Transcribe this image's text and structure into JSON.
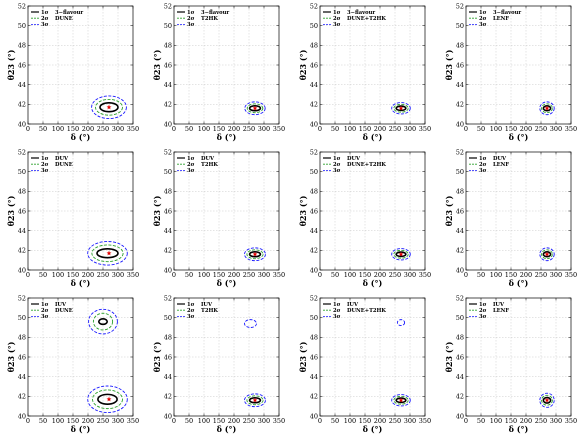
{
  "chart_data": [
    {
      "type": "contour",
      "panel": "r1c1",
      "xlabel": "δ (°)",
      "ylabel": "θ23 (°)",
      "xlim": [
        0,
        350
      ],
      "ylim": [
        40,
        52
      ],
      "legend": {
        "sigma_labels": [
          "1σ",
          "2σ",
          "3σ"
        ],
        "names": [
          "3−flavour",
          "DUNE"
        ],
        "placement": "top-left"
      },
      "best_fit": {
        "x": 270,
        "y": 41.7
      },
      "contours": [
        {
          "level": "1σ",
          "cx": 270,
          "cy": 41.7,
          "rx": 30,
          "ry": 0.45
        },
        {
          "level": "2σ",
          "cx": 270,
          "cy": 41.7,
          "rx": 45,
          "ry": 0.8
        },
        {
          "level": "3σ",
          "cx": 270,
          "cy": 41.7,
          "rx": 58,
          "ry": 1.15
        }
      ]
    },
    {
      "type": "contour",
      "panel": "r1c2",
      "xlabel": "δ (°)",
      "ylabel": "θ23 (°)",
      "xlim": [
        0,
        350
      ],
      "ylim": [
        40,
        52
      ],
      "legend": {
        "sigma_labels": [
          "1σ",
          "2σ",
          "3σ"
        ],
        "names": [
          "3−flavour",
          "T2HK"
        ],
        "placement": "top-left"
      },
      "best_fit": {
        "x": 270,
        "y": 41.6
      },
      "contours": [
        {
          "level": "1σ",
          "cx": 270,
          "cy": 41.6,
          "rx": 18,
          "ry": 0.25
        },
        {
          "level": "2σ",
          "cx": 270,
          "cy": 41.6,
          "rx": 26,
          "ry": 0.45
        },
        {
          "level": "3σ",
          "cx": 270,
          "cy": 41.6,
          "rx": 34,
          "ry": 0.65
        }
      ]
    },
    {
      "type": "contour",
      "panel": "r1c3",
      "xlabel": "δ (°)",
      "ylabel": "θ23 (°)",
      "xlim": [
        0,
        350
      ],
      "ylim": [
        40,
        52
      ],
      "legend": {
        "sigma_labels": [
          "1σ",
          "2σ",
          "3σ"
        ],
        "names": [
          "3−flavour",
          "DUNE+T2HK"
        ],
        "placement": "top-left"
      },
      "best_fit": {
        "x": 270,
        "y": 41.6
      },
      "contours": [
        {
          "level": "1σ",
          "cx": 270,
          "cy": 41.6,
          "rx": 16,
          "ry": 0.22
        },
        {
          "level": "2σ",
          "cx": 270,
          "cy": 41.6,
          "rx": 24,
          "ry": 0.4
        },
        {
          "level": "3σ",
          "cx": 270,
          "cy": 41.6,
          "rx": 31,
          "ry": 0.58
        }
      ]
    },
    {
      "type": "contour",
      "panel": "r1c4",
      "xlabel": "δ (°)",
      "ylabel": "θ23 (°)",
      "xlim": [
        0,
        350
      ],
      "ylim": [
        40,
        52
      ],
      "legend": {
        "sigma_labels": [
          "1σ",
          "2σ",
          "3σ"
        ],
        "names": [
          "3−flavour",
          "LENF"
        ],
        "placement": "top-left"
      },
      "best_fit": {
        "x": 270,
        "y": 41.6
      },
      "contours": [
        {
          "level": "1σ",
          "cx": 270,
          "cy": 41.6,
          "rx": 12,
          "ry": 0.25
        },
        {
          "level": "2σ",
          "cx": 270,
          "cy": 41.6,
          "rx": 18,
          "ry": 0.45
        },
        {
          "level": "3σ",
          "cx": 270,
          "cy": 41.6,
          "rx": 24,
          "ry": 0.65
        }
      ]
    },
    {
      "type": "contour",
      "panel": "r2c1",
      "xlabel": "δ (°)",
      "ylabel": "θ23 (°)",
      "xlim": [
        0,
        350
      ],
      "ylim": [
        40,
        52
      ],
      "legend": {
        "sigma_labels": [
          "1σ",
          "2σ",
          "3σ"
        ],
        "names": [
          "DUV",
          "DUNE"
        ],
        "placement": "top-left"
      },
      "best_fit": {
        "x": 270,
        "y": 41.7
      },
      "contours": [
        {
          "level": "1σ",
          "cx": 265,
          "cy": 41.7,
          "rx": 35,
          "ry": 0.45
        },
        {
          "level": "2σ",
          "cx": 265,
          "cy": 41.7,
          "rx": 52,
          "ry": 0.85
        },
        {
          "level": "3σ",
          "cx": 265,
          "cy": 41.7,
          "rx": 66,
          "ry": 1.2
        }
      ]
    },
    {
      "type": "contour",
      "panel": "r2c2",
      "xlabel": "δ (°)",
      "ylabel": "θ23 (°)",
      "xlim": [
        0,
        350
      ],
      "ylim": [
        40,
        52
      ],
      "legend": {
        "sigma_labels": [
          "1σ",
          "2σ",
          "3σ"
        ],
        "names": [
          "DUV",
          "T2HK"
        ],
        "placement": "top-left"
      },
      "best_fit": {
        "x": 270,
        "y": 41.6
      },
      "contours": [
        {
          "level": "1σ",
          "cx": 270,
          "cy": 41.6,
          "rx": 18,
          "ry": 0.25
        },
        {
          "level": "2σ",
          "cx": 270,
          "cy": 41.6,
          "rx": 27,
          "ry": 0.45
        },
        {
          "level": "3σ",
          "cx": 270,
          "cy": 41.6,
          "rx": 35,
          "ry": 0.65
        }
      ]
    },
    {
      "type": "contour",
      "panel": "r2c3",
      "xlabel": "δ (°)",
      "ylabel": "θ23 (°)",
      "xlim": [
        0,
        350
      ],
      "ylim": [
        40,
        52
      ],
      "legend": {
        "sigma_labels": [
          "1σ",
          "2σ",
          "3σ"
        ],
        "names": [
          "DUV",
          "DUNE+T2HK"
        ],
        "placement": "top-left"
      },
      "best_fit": {
        "x": 270,
        "y": 41.6
      },
      "contours": [
        {
          "level": "1σ",
          "cx": 270,
          "cy": 41.6,
          "rx": 16,
          "ry": 0.22
        },
        {
          "level": "2σ",
          "cx": 270,
          "cy": 41.6,
          "rx": 24,
          "ry": 0.4
        },
        {
          "level": "3σ",
          "cx": 270,
          "cy": 41.6,
          "rx": 31,
          "ry": 0.58
        }
      ]
    },
    {
      "type": "contour",
      "panel": "r2c4",
      "xlabel": "δ (°)",
      "ylabel": "θ23 (°)",
      "xlim": [
        0,
        350
      ],
      "ylim": [
        40,
        52
      ],
      "legend": {
        "sigma_labels": [
          "1σ",
          "2σ",
          "3σ"
        ],
        "names": [
          "DUV",
          "LENF"
        ],
        "placement": "top-left"
      },
      "best_fit": {
        "x": 270,
        "y": 41.6
      },
      "contours": [
        {
          "level": "1σ",
          "cx": 270,
          "cy": 41.6,
          "rx": 12,
          "ry": 0.25
        },
        {
          "level": "2σ",
          "cx": 270,
          "cy": 41.6,
          "rx": 18,
          "ry": 0.45
        },
        {
          "level": "3σ",
          "cx": 270,
          "cy": 41.6,
          "rx": 24,
          "ry": 0.65
        }
      ]
    },
    {
      "type": "contour",
      "panel": "r3c1",
      "xlabel": "δ (°)",
      "ylabel": "θ23 (°)",
      "xlim": [
        0,
        350
      ],
      "ylim": [
        40,
        52
      ],
      "legend": {
        "sigma_labels": [
          "1σ",
          "2σ",
          "3σ"
        ],
        "names": [
          "IUV",
          "DUNE"
        ],
        "placement": "top-left"
      },
      "best_fit": {
        "x": 270,
        "y": 41.7
      },
      "contours": [
        {
          "level": "1σ",
          "cx": 265,
          "cy": 41.7,
          "rx": 32,
          "ry": 0.5
        },
        {
          "level": "2σ",
          "cx": 265,
          "cy": 41.7,
          "rx": 50,
          "ry": 0.95
        },
        {
          "level": "3σ",
          "cx": 265,
          "cy": 41.7,
          "rx": 66,
          "ry": 1.35
        },
        {
          "level": "1σ",
          "cx": 250,
          "cy": 49.6,
          "rx": 14,
          "ry": 0.28
        },
        {
          "level": "2σ",
          "cx": 250,
          "cy": 49.6,
          "rx": 32,
          "ry": 0.85
        },
        {
          "level": "3σ",
          "cx": 250,
          "cy": 49.6,
          "rx": 48,
          "ry": 1.25
        }
      ]
    },
    {
      "type": "contour",
      "panel": "r3c2",
      "xlabel": "δ (°)",
      "ylabel": "θ23 (°)",
      "xlim": [
        0,
        350
      ],
      "ylim": [
        40,
        52
      ],
      "legend": {
        "sigma_labels": [
          "1σ",
          "2σ",
          "3σ"
        ],
        "names": [
          "IUV",
          "T2HK"
        ],
        "placement": "top-left"
      },
      "best_fit": {
        "x": 270,
        "y": 41.6
      },
      "contours": [
        {
          "level": "1σ",
          "cx": 270,
          "cy": 41.6,
          "rx": 18,
          "ry": 0.25
        },
        {
          "level": "2σ",
          "cx": 270,
          "cy": 41.6,
          "rx": 27,
          "ry": 0.45
        },
        {
          "level": "3σ",
          "cx": 270,
          "cy": 41.6,
          "rx": 35,
          "ry": 0.65
        },
        {
          "level": "3σ",
          "cx": 255,
          "cy": 49.4,
          "rx": 20,
          "ry": 0.4
        }
      ]
    },
    {
      "type": "contour",
      "panel": "r3c3",
      "xlabel": "δ (°)",
      "ylabel": "θ23 (°)",
      "xlim": [
        0,
        350
      ],
      "ylim": [
        40,
        52
      ],
      "legend": {
        "sigma_labels": [
          "1σ",
          "2σ",
          "3σ"
        ],
        "names": [
          "IUV",
          "DUNE+T2HK"
        ],
        "placement": "top-left"
      },
      "best_fit": {
        "x": 270,
        "y": 41.6
      },
      "contours": [
        {
          "level": "1σ",
          "cx": 270,
          "cy": 41.6,
          "rx": 16,
          "ry": 0.22
        },
        {
          "level": "2σ",
          "cx": 270,
          "cy": 41.6,
          "rx": 24,
          "ry": 0.4
        },
        {
          "level": "3σ",
          "cx": 270,
          "cy": 41.6,
          "rx": 31,
          "ry": 0.58
        },
        {
          "level": "3σ",
          "cx": 270,
          "cy": 49.5,
          "rx": 12,
          "ry": 0.3
        }
      ]
    },
    {
      "type": "contour",
      "panel": "r3c4",
      "xlabel": "δ (°)",
      "ylabel": "θ23 (°)",
      "xlim": [
        0,
        350
      ],
      "ylim": [
        40,
        52
      ],
      "legend": {
        "sigma_labels": [
          "1σ",
          "2σ",
          "3σ"
        ],
        "names": [
          "IUV",
          "LENF"
        ],
        "placement": "top-left"
      },
      "best_fit": {
        "x": 270,
        "y": 41.6
      },
      "contours": [
        {
          "level": "1σ",
          "cx": 270,
          "cy": 41.6,
          "rx": 12,
          "ry": 0.28
        },
        {
          "level": "2σ",
          "cx": 270,
          "cy": 41.6,
          "rx": 18,
          "ry": 0.5
        },
        {
          "level": "3σ",
          "cx": 270,
          "cy": 41.6,
          "rx": 24,
          "ry": 0.72
        }
      ]
    }
  ],
  "axes": {
    "xticks": [
      0,
      50,
      100,
      150,
      200,
      250,
      300,
      350
    ],
    "yticks": [
      40,
      42,
      44,
      46,
      48,
      50,
      52
    ],
    "xlabel": "δ (°)",
    "ylabel": "θ23 (°)"
  },
  "colors": {
    "sigma1": "#000000",
    "sigma2": "#2ca02c",
    "sigma3": "#1a1aff",
    "best_fit": "#e00000",
    "frame": "#000000",
    "grid": "#bbbbbb"
  }
}
